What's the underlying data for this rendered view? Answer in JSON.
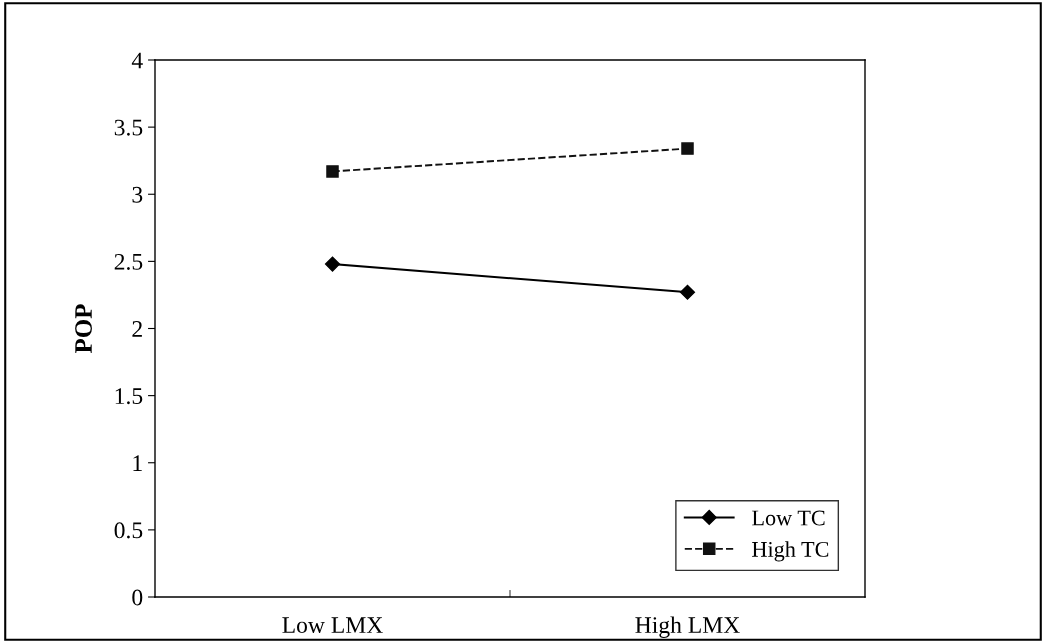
{
  "chart_data": {
    "type": "line",
    "ylabel": "POP",
    "categories": [
      "Low LMX",
      "High LMX"
    ],
    "series": [
      {
        "name": "Low TC",
        "color": "#000000",
        "values": [
          2.48,
          2.27
        ],
        "marker": "diamond",
        "line_style": "solid"
      },
      {
        "name": "High TC",
        "color": "#111111",
        "values": [
          3.17,
          3.34
        ],
        "marker": "square",
        "line_style": "dashed"
      }
    ],
    "ylim": [
      0,
      4
    ],
    "yticks": [
      0,
      0.5,
      1,
      1.5,
      2,
      2.5,
      3,
      3.5,
      4
    ],
    "grid": false,
    "legend": "bottom right"
  }
}
